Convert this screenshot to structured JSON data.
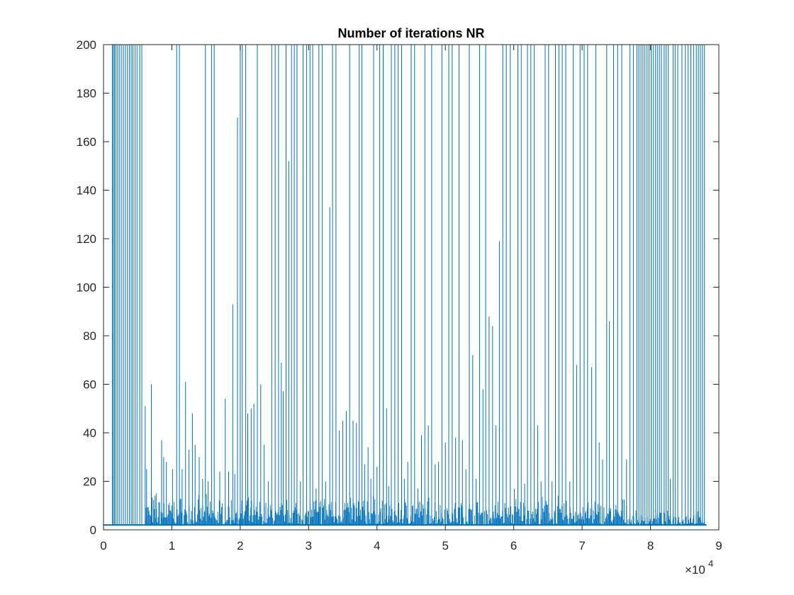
{
  "chart_data": {
    "type": "line",
    "title": "Number of iterations NR",
    "xlabel": "",
    "ylabel": "",
    "xlim": [
      0,
      90000
    ],
    "ylim": [
      0,
      200
    ],
    "x_ticks": [
      0,
      10000,
      20000,
      30000,
      40000,
      50000,
      60000,
      70000,
      80000,
      90000
    ],
    "x_tick_labels": [
      "0",
      "1",
      "2",
      "3",
      "4",
      "5",
      "6",
      "7",
      "8",
      "9"
    ],
    "x_exponent": {
      "base": "×10",
      "power": "4"
    },
    "y_ticks": [
      0,
      20,
      40,
      60,
      80,
      100,
      120,
      140,
      160,
      180,
      200
    ],
    "y_tick_labels": [
      "0",
      "20",
      "40",
      "60",
      "80",
      "100",
      "120",
      "140",
      "160",
      "180",
      "200"
    ],
    "grid": false,
    "baseline": 2,
    "x_end": 88200,
    "series": [
      {
        "color": "#0072BD",
        "spikes": [
          [
            1300,
            200
          ],
          [
            1450,
            200
          ],
          [
            1600,
            200
          ],
          [
            1800,
            200
          ],
          [
            2050,
            200
          ],
          [
            2300,
            200
          ],
          [
            2600,
            200
          ],
          [
            2900,
            200
          ],
          [
            3200,
            200
          ],
          [
            3500,
            200
          ],
          [
            3800,
            200
          ],
          [
            4050,
            200
          ],
          [
            4300,
            200
          ],
          [
            4600,
            200
          ],
          [
            4900,
            200
          ],
          [
            5300,
            200
          ],
          [
            5600,
            200
          ],
          [
            6100,
            51
          ],
          [
            6300,
            25
          ],
          [
            7000,
            60
          ],
          [
            7700,
            15
          ],
          [
            8500,
            37
          ],
          [
            8800,
            30
          ],
          [
            9200,
            28
          ],
          [
            10100,
            25
          ],
          [
            10700,
            200
          ],
          [
            11100,
            200
          ],
          [
            11500,
            25
          ],
          [
            12000,
            61
          ],
          [
            12500,
            33
          ],
          [
            13000,
            48
          ],
          [
            13400,
            35
          ],
          [
            14000,
            30
          ],
          [
            14500,
            21
          ],
          [
            14900,
            200
          ],
          [
            15300,
            20
          ],
          [
            15800,
            200
          ],
          [
            16200,
            200
          ],
          [
            17000,
            24
          ],
          [
            17800,
            54
          ],
          [
            18300,
            24
          ],
          [
            18900,
            93
          ],
          [
            19200,
            23
          ],
          [
            19600,
            170
          ],
          [
            20000,
            200
          ],
          [
            20300,
            200
          ],
          [
            20800,
            200
          ],
          [
            21100,
            48
          ],
          [
            21600,
            50
          ],
          [
            22000,
            52
          ],
          [
            22500,
            200
          ],
          [
            23000,
            60
          ],
          [
            23500,
            35
          ],
          [
            24100,
            20
          ],
          [
            24600,
            200
          ],
          [
            25100,
            200
          ],
          [
            25600,
            200
          ],
          [
            26000,
            69
          ],
          [
            26300,
            57
          ],
          [
            26700,
            200
          ],
          [
            27100,
            152
          ],
          [
            27500,
            200
          ],
          [
            27900,
            200
          ],
          [
            28300,
            200
          ],
          [
            28800,
            20
          ],
          [
            29200,
            200
          ],
          [
            29700,
            200
          ],
          [
            30200,
            200
          ],
          [
            30600,
            200
          ],
          [
            31100,
            17
          ],
          [
            31500,
            200
          ],
          [
            32000,
            200
          ],
          [
            32500,
            20
          ],
          [
            33100,
            133
          ],
          [
            33500,
            200
          ],
          [
            34000,
            200
          ],
          [
            34500,
            41
          ],
          [
            35000,
            45
          ],
          [
            35500,
            49
          ],
          [
            36000,
            200
          ],
          [
            36500,
            45
          ],
          [
            37000,
            44
          ],
          [
            37400,
            200
          ],
          [
            37800,
            200
          ],
          [
            38200,
            27
          ],
          [
            38700,
            34
          ],
          [
            39100,
            21
          ],
          [
            39500,
            200
          ],
          [
            40000,
            26
          ],
          [
            40400,
            200
          ],
          [
            40900,
            200
          ],
          [
            41400,
            50
          ],
          [
            41700,
            18
          ],
          [
            42100,
            200
          ],
          [
            42600,
            200
          ],
          [
            43100,
            200
          ],
          [
            43600,
            200
          ],
          [
            44000,
            21
          ],
          [
            44500,
            28
          ],
          [
            45000,
            200
          ],
          [
            45500,
            200
          ],
          [
            46000,
            17
          ],
          [
            46500,
            39
          ],
          [
            47000,
            200
          ],
          [
            47500,
            43
          ],
          [
            48000,
            200
          ],
          [
            48500,
            27
          ],
          [
            49000,
            28
          ],
          [
            49500,
            200
          ],
          [
            50000,
            36
          ],
          [
            50500,
            200
          ],
          [
            51000,
            200
          ],
          [
            51500,
            38
          ],
          [
            52000,
            200
          ],
          [
            52500,
            37
          ],
          [
            53000,
            25
          ],
          [
            53500,
            200
          ],
          [
            54000,
            72
          ],
          [
            54500,
            21
          ],
          [
            55000,
            200
          ],
          [
            55500,
            58
          ],
          [
            55900,
            200
          ],
          [
            56400,
            88
          ],
          [
            56900,
            84
          ],
          [
            57400,
            43
          ],
          [
            57900,
            119
          ],
          [
            58400,
            200
          ],
          [
            58900,
            200
          ],
          [
            59500,
            200
          ],
          [
            60100,
            17
          ],
          [
            60600,
            200
          ],
          [
            61100,
            200
          ],
          [
            61600,
            19
          ],
          [
            62000,
            200
          ],
          [
            62500,
            200
          ],
          [
            63000,
            200
          ],
          [
            63500,
            43
          ],
          [
            64000,
            20
          ],
          [
            64600,
            200
          ],
          [
            65100,
            200
          ],
          [
            65600,
            20
          ],
          [
            66100,
            200
          ],
          [
            66600,
            200
          ],
          [
            67100,
            200
          ],
          [
            67600,
            200
          ],
          [
            68200,
            20
          ],
          [
            68700,
            200
          ],
          [
            69200,
            68
          ],
          [
            69700,
            200
          ],
          [
            70300,
            200
          ],
          [
            70800,
            200
          ],
          [
            71400,
            67
          ],
          [
            72000,
            200
          ],
          [
            72500,
            36
          ],
          [
            73000,
            29
          ],
          [
            73600,
            200
          ],
          [
            74000,
            86
          ],
          [
            74600,
            200
          ],
          [
            75200,
            200
          ],
          [
            75800,
            200
          ],
          [
            76500,
            29
          ],
          [
            77000,
            200
          ],
          [
            77500,
            200
          ],
          [
            78000,
            200
          ],
          [
            78300,
            200
          ],
          [
            78600,
            200
          ],
          [
            78900,
            200
          ],
          [
            79200,
            200
          ],
          [
            79500,
            200
          ],
          [
            79800,
            200
          ],
          [
            80100,
            200
          ],
          [
            80400,
            200
          ],
          [
            80700,
            200
          ],
          [
            81000,
            200
          ],
          [
            81300,
            200
          ],
          [
            81600,
            200
          ],
          [
            82000,
            200
          ],
          [
            82300,
            200
          ],
          [
            82600,
            200
          ],
          [
            82900,
            21
          ],
          [
            83300,
            200
          ],
          [
            83600,
            200
          ],
          [
            84000,
            200
          ],
          [
            84600,
            200
          ],
          [
            85100,
            200
          ],
          [
            85500,
            200
          ],
          [
            85900,
            200
          ],
          [
            86300,
            200
          ],
          [
            86700,
            200
          ],
          [
            87000,
            200
          ],
          [
            87300,
            200
          ],
          [
            87600,
            200
          ],
          [
            87900,
            200
          ]
        ],
        "noise_segments": [
          [
            6000,
            10000,
            14
          ],
          [
            10000,
            20000,
            13
          ],
          [
            20000,
            30000,
            12
          ],
          [
            30000,
            40000,
            14
          ],
          [
            40000,
            50000,
            13
          ],
          [
            50000,
            60000,
            12
          ],
          [
            60000,
            70000,
            13
          ],
          [
            70000,
            77000,
            12
          ],
          [
            77000,
            88000,
            6
          ]
        ]
      }
    ]
  }
}
